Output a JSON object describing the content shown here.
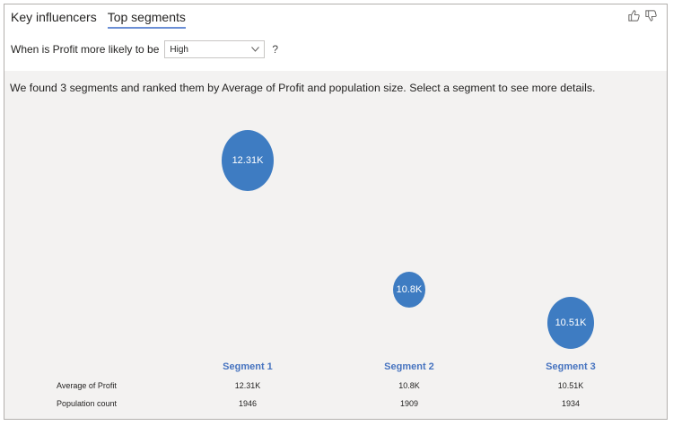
{
  "tabs": [
    {
      "label": "Key influencers",
      "active": false
    },
    {
      "label": "Top segments",
      "active": true
    }
  ],
  "feedback": {
    "like_icon": "thumbs-up-icon",
    "dislike_icon": "thumbs-down-icon"
  },
  "question": {
    "prefix": "When is Profit more likely to be",
    "selected": "High",
    "help": "?"
  },
  "summary": "We found 3 segments and ranked them by Average of Profit and population size. Select a segment to see more details.",
  "segments": [
    {
      "name": "Segment 1",
      "bubble_label": "12.31K",
      "average_of_profit": "12.31K",
      "population_count": "1946"
    },
    {
      "name": "Segment 2",
      "bubble_label": "10.8K",
      "average_of_profit": "10.8K",
      "population_count": "1909"
    },
    {
      "name": "Segment 3",
      "bubble_label": "10.51K",
      "average_of_profit": "10.51K",
      "population_count": "1934"
    }
  ],
  "table": {
    "row_labels": [
      "Average of Profit",
      "Population count"
    ]
  },
  "colors": {
    "bubble": "#3e7cc2",
    "segment_label": "#4774c0",
    "tab_underline": "#6b8fd6",
    "panel_bg": "#f3f2f1"
  }
}
